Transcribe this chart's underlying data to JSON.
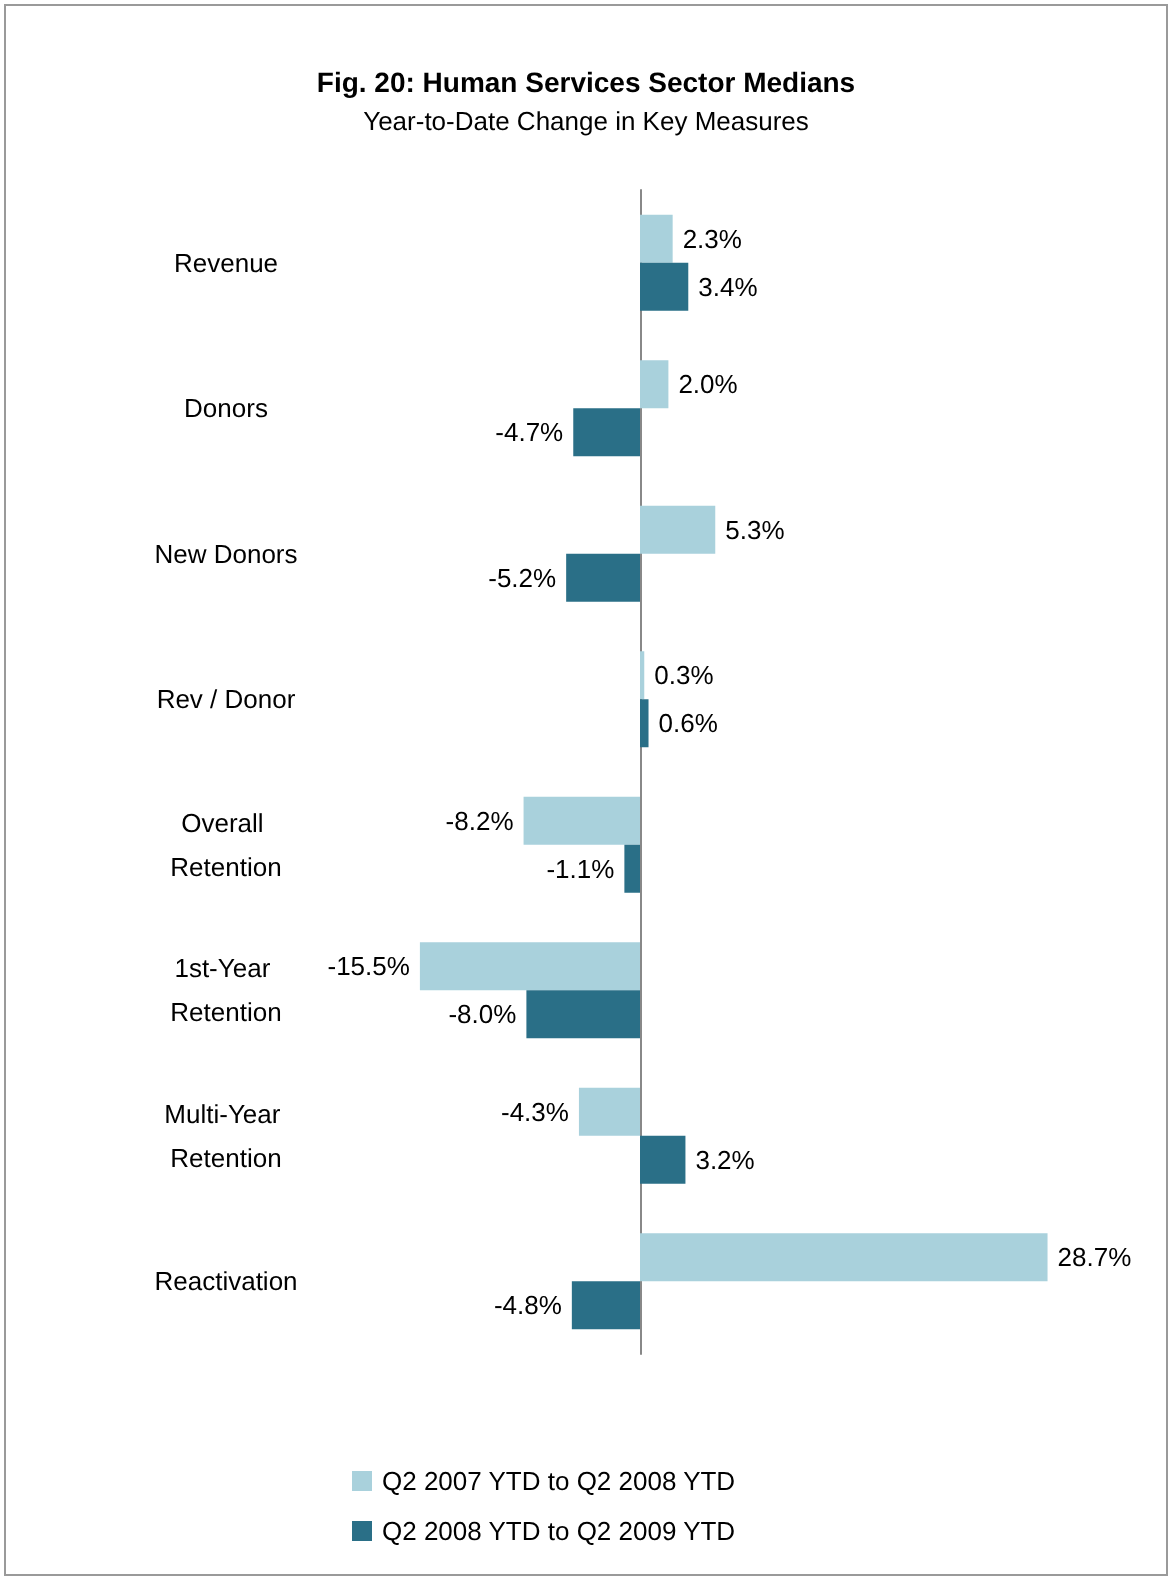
{
  "chart_data": {
    "type": "bar",
    "orientation": "horizontal",
    "title": "Fig. 20: Human Services Sector Medians",
    "subtitle": "Year-to-Date Change in Key Measures",
    "categories": [
      "Revenue",
      "Donors",
      "New Donors",
      "Rev / Donor",
      "Overall Retention",
      "1st-Year Retention",
      "Multi-Year Retention",
      "Reactivation"
    ],
    "series": [
      {
        "name": "Q2 2007 YTD to Q2 2008 YTD",
        "color": "#a9d1dc",
        "values": [
          2.3,
          2.0,
          5.3,
          0.3,
          -8.2,
          -15.5,
          -4.3,
          28.7
        ],
        "value_labels": [
          "2.3%",
          "2.0%",
          "5.3%",
          "0.3%",
          "-8.2%",
          "-15.5%",
          "-4.3%",
          "28.7%"
        ]
      },
      {
        "name": "Q2 2008 YTD to Q2 2009 YTD",
        "color": "#2a6f87",
        "values": [
          3.4,
          -4.7,
          -5.2,
          0.6,
          -1.1,
          -8.0,
          3.2,
          -4.8
        ],
        "value_labels": [
          "3.4%",
          "-4.7%",
          "-5.2%",
          "0.6%",
          "-1.1%",
          "-8.0%",
          "3.2%",
          "-4.8%"
        ]
      }
    ],
    "legend": "bottom"
  }
}
